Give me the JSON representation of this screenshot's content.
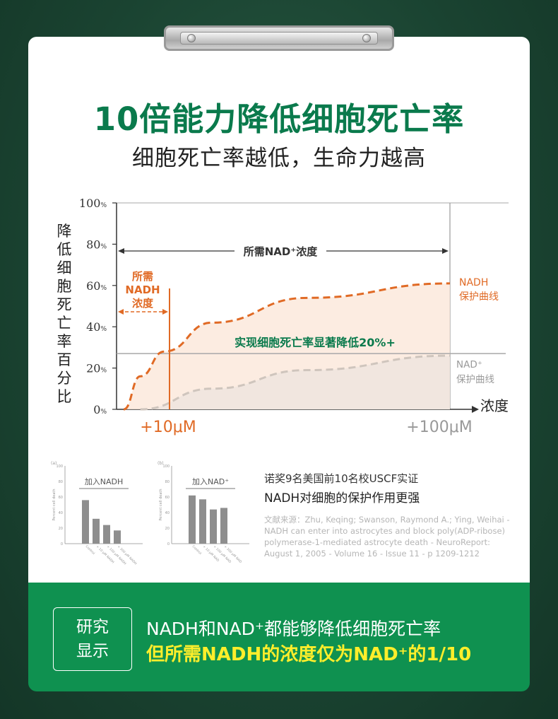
{
  "header": {
    "title": "10倍能力降低细胞死亡率",
    "subtitle": "细胞死亡率越低，生命力越高"
  },
  "chart_data": {
    "type": "line",
    "ylabel": "降低细胞死亡率百分比",
    "xlabel": "浓度",
    "ylim": [
      0,
      100
    ],
    "yticks": [
      "100%",
      "80%",
      "60%",
      "40%",
      "20%",
      "0%"
    ],
    "xtick_labels": [
      "+10μM",
      "+100μM"
    ],
    "series": [
      {
        "name": "NADH保护曲线",
        "x": [
          0.3,
          1,
          2,
          4,
          8,
          14
        ],
        "y": [
          0,
          16,
          28,
          42,
          54,
          61
        ],
        "color": "#e06a25"
      },
      {
        "name": "NAD+保护曲线",
        "x": [
          1,
          4,
          8,
          14
        ],
        "y": [
          0,
          10,
          19,
          26
        ],
        "color": "#cfc5bd"
      }
    ],
    "annotations": {
      "nadh_range_label": [
        "所需",
        "NADH",
        "浓度"
      ],
      "nad_range_label": "所需NAD⁺浓度",
      "result_label": "实现细胞死亡率显著降低20%+",
      "nadh_curve_label": [
        "NADH",
        "保护曲线"
      ],
      "nad_curve_label": [
        "NAD⁺",
        "保护曲线"
      ],
      "threshold_y": 27
    }
  },
  "study": {
    "thumbs": [
      {
        "panel": "(a)",
        "label": "加入NADH",
        "ylabel": "Percent cell death",
        "yticks": [
          "100",
          "80",
          "60",
          "40",
          "20",
          "0"
        ],
        "categories": [
          "Control",
          "+ 10 μM NADH",
          "+ 100 μM NADH",
          "+ 300 μM NADH"
        ],
        "values": [
          56,
          32,
          24,
          17
        ]
      },
      {
        "panel": "(b)",
        "label": "加入NAD⁺",
        "ylabel": "Percent cell death",
        "yticks": [
          "100",
          "80",
          "60",
          "40",
          "20",
          "0"
        ],
        "categories": [
          "Control",
          "+ 10 μM NAD",
          "+ 100 μM NAD",
          "+ 300 μM NAD"
        ],
        "values": [
          62,
          57,
          44,
          46
        ]
      }
    ],
    "headline": "诺奖9名美国前10名校USCF实证",
    "headline2": "NADH对细胞的保护作用更强",
    "reference": "文献来源：Zhu, Keqing; Swanson, Raymond A.; Ying, Weihai - NADH can enter into astrocytes and block poly(ADP-ribose) polymerase-1-mediated astrocyte death - NeuroReport: August 1, 2005 - Volume 16 - Issue 11 - p 1209-1212"
  },
  "results": {
    "badge": [
      "研究",
      "显示"
    ],
    "line1": "NADH和NAD⁺都能够降低细胞死亡率",
    "line2": "但所需NADH的浓度仅为NAD⁺的1/10"
  },
  "colors": {
    "background": "#1d4a37",
    "title_green": "#0a7a4c",
    "panel_green": "#0f9150",
    "nadh_orange": "#e06a25",
    "highlight_yellow": "#ffee2b"
  }
}
